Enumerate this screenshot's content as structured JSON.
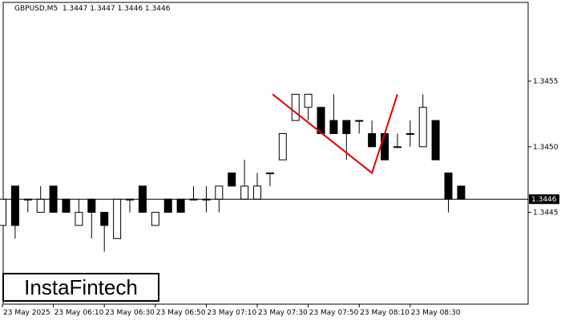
{
  "header": {
    "symbol_line": "GBPUSD,M5  1.3447 1.3447 1.3446 1.3446"
  },
  "logo": {
    "text": "InstaFintech"
  },
  "colors": {
    "background": "#ffffff",
    "bull_body": "#ffffff",
    "bear_body": "#000000",
    "pattern_line": "#e00000",
    "price_tag_bg": "#000000",
    "price_tag_text": "#ffffff"
  },
  "chart_data": {
    "type": "candlestick",
    "title": "GBPUSD,M5",
    "ohlc_header": {
      "open": 1.3447,
      "high": 1.3447,
      "low": 1.3446,
      "close": 1.3446
    },
    "ylim": [
      1.3438,
      1.3461
    ],
    "y_ticks": [
      "1.3455",
      "1.3450",
      "1.3445"
    ],
    "current_price": "1.3446",
    "x_tick_labels": [
      "23 May 2025",
      "23 May 06:10",
      "23 May 06:30",
      "23 May 06:50",
      "23 May 07:10",
      "23 May 07:30",
      "23 May 07:50",
      "23 May 08:10",
      "23 May 08:30"
    ],
    "candles": [
      {
        "o": 1.3444,
        "h": 1.3446,
        "l": 1.3444,
        "c": 1.3446
      },
      {
        "o": 1.3447,
        "h": 1.3447,
        "l": 1.3443,
        "c": 1.3444
      },
      {
        "o": 1.3446,
        "h": 1.3446,
        "l": 1.3445,
        "c": 1.3446
      },
      {
        "o": 1.3445,
        "h": 1.3447,
        "l": 1.3445,
        "c": 1.3446
      },
      {
        "o": 1.3447,
        "h": 1.3447,
        "l": 1.3445,
        "c": 1.3445
      },
      {
        "o": 1.3446,
        "h": 1.3446,
        "l": 1.3445,
        "c": 1.3445
      },
      {
        "o": 1.3444,
        "h": 1.3446,
        "l": 1.3444,
        "c": 1.3445
      },
      {
        "o": 1.3446,
        "h": 1.3446,
        "l": 1.3443,
        "c": 1.3445
      },
      {
        "o": 1.3445,
        "h": 1.3445,
        "l": 1.3442,
        "c": 1.3444
      },
      {
        "o": 1.3443,
        "h": 1.3446,
        "l": 1.3443,
        "c": 1.3446
      },
      {
        "o": 1.3446,
        "h": 1.3446,
        "l": 1.3445,
        "c": 1.3446
      },
      {
        "o": 1.3447,
        "h": 1.3447,
        "l": 1.3445,
        "c": 1.3445
      },
      {
        "o": 1.3444,
        "h": 1.3445,
        "l": 1.3444,
        "c": 1.3445
      },
      {
        "o": 1.3446,
        "h": 1.3446,
        "l": 1.3445,
        "c": 1.3445
      },
      {
        "o": 1.3446,
        "h": 1.3446,
        "l": 1.3445,
        "c": 1.3445
      },
      {
        "o": 1.3446,
        "h": 1.3447,
        "l": 1.3446,
        "c": 1.3446
      },
      {
        "o": 1.3446,
        "h": 1.3447,
        "l": 1.3445,
        "c": 1.3446
      },
      {
        "o": 1.3446,
        "h": 1.3447,
        "l": 1.3445,
        "c": 1.3447
      },
      {
        "o": 1.3448,
        "h": 1.3448,
        "l": 1.3447,
        "c": 1.3447
      },
      {
        "o": 1.3446,
        "h": 1.3449,
        "l": 1.3446,
        "c": 1.3447
      },
      {
        "o": 1.3446,
        "h": 1.3448,
        "l": 1.3446,
        "c": 1.3447
      },
      {
        "o": 1.3448,
        "h": 1.3448,
        "l": 1.3447,
        "c": 1.3448
      },
      {
        "o": 1.3449,
        "h": 1.3451,
        "l": 1.3449,
        "c": 1.3451
      },
      {
        "o": 1.3452,
        "h": 1.3454,
        "l": 1.3452,
        "c": 1.3454
      },
      {
        "o": 1.3453,
        "h": 1.3454,
        "l": 1.3452,
        "c": 1.3454
      },
      {
        "o": 1.3453,
        "h": 1.3453,
        "l": 1.3451,
        "c": 1.3451
      },
      {
        "o": 1.3452,
        "h": 1.3454,
        "l": 1.3451,
        "c": 1.3451
      },
      {
        "o": 1.3452,
        "h": 1.3452,
        "l": 1.3449,
        "c": 1.3451
      },
      {
        "o": 1.3452,
        "h": 1.3452,
        "l": 1.3451,
        "c": 1.3452
      },
      {
        "o": 1.3451,
        "h": 1.3452,
        "l": 1.345,
        "c": 1.345
      },
      {
        "o": 1.3451,
        "h": 1.3451,
        "l": 1.3449,
        "c": 1.3449
      },
      {
        "o": 1.345,
        "h": 1.3451,
        "l": 1.345,
        "c": 1.345
      },
      {
        "o": 1.3451,
        "h": 1.3452,
        "l": 1.345,
        "c": 1.3451
      },
      {
        "o": 1.345,
        "h": 1.3454,
        "l": 1.345,
        "c": 1.3453
      },
      {
        "o": 1.3452,
        "h": 1.3452,
        "l": 1.3449,
        "c": 1.3449
      },
      {
        "o": 1.3448,
        "h": 1.3448,
        "l": 1.3445,
        "c": 1.3446
      },
      {
        "o": 1.3447,
        "h": 1.3447,
        "l": 1.3446,
        "c": 1.3446
      }
    ],
    "pattern_line": [
      {
        "i": 21.2,
        "p": 1.3454
      },
      {
        "i": 29.0,
        "p": 1.3448
      },
      {
        "i": 31.0,
        "p": 1.3454
      }
    ]
  }
}
